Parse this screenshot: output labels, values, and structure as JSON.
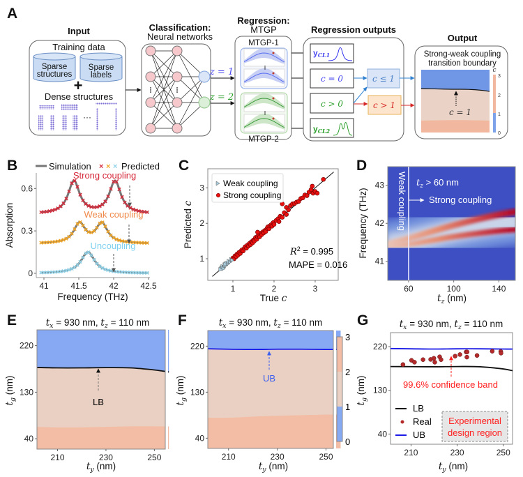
{
  "panel_labels": {
    "a": "A",
    "b": "B",
    "c": "C",
    "d": "D",
    "e": "E",
    "f": "F",
    "g": "G"
  },
  "diagram": {
    "input": {
      "title": "Input",
      "training": "Training data",
      "cyl1": [
        "Sparse",
        "structures"
      ],
      "cyl2": [
        "Sparse",
        "labels"
      ],
      "plus": "+",
      "dense": "Dense structures",
      "ellipsis": "···"
    },
    "classification": {
      "title1": "Classification:",
      "title2": "Neural networks",
      "z1": "z = 1",
      "z2": "z = 2"
    },
    "regression": {
      "title1": "Regression:",
      "title2": "MTGP",
      "mtgp1": "MTGP-1",
      "mtgp2": "MTGP-2"
    },
    "outputs": {
      "title": "Regression outputs",
      "ycl1": "y",
      "ycl1_sub": "CL1",
      "c0": "c = 0",
      "cgt0": "c > 0",
      "ycl2": "y",
      "ycl2_sub": "CL2",
      "cle1": "c ≤ 1",
      "cgt1": "c > 1"
    },
    "final": {
      "title": "Output",
      "sub1": "Strong-weak coupling",
      "sub2": "transition boundary",
      "cbar_label": "c",
      "cbar_ticks": [
        "3",
        "2",
        "1",
        "0"
      ],
      "annot": "c = 1"
    },
    "colors": {
      "blue": "#2f80d0",
      "red": "#d62828",
      "green": "#2ca02c",
      "purple": "#4a4af0"
    }
  },
  "chart_data": [
    {
      "id": "B",
      "type": "line",
      "legend": {
        "simulation": "Simulation",
        "predicted": "Predicted",
        "marks": [
          "×",
          "×",
          "×"
        ]
      },
      "xlabel": "Frequency (THz)",
      "ylabel": "Absorption",
      "xlim": [
        40.89,
        42.52
      ],
      "ylim": [
        -0.03,
        0.71
      ],
      "xticks": [
        "41",
        "41.5",
        "42",
        "42.5"
      ],
      "xtick_values": [
        41,
        41.5,
        42,
        42.5
      ],
      "yticks": [
        "0",
        "0.3",
        "0.6"
      ],
      "ytick_values": [
        0,
        0.3,
        0.6
      ],
      "predicted_step": 0.04,
      "series": [
        {
          "name": "Strong coupling",
          "color": "#d62839",
          "baseline": 0.42,
          "peaks": [
            [
              41.43,
              0.23
            ],
            [
              42.02,
              0.23
            ]
          ],
          "width": 0.1,
          "arrow_x": 42.23
        },
        {
          "name": "Weak coupling",
          "color": "#f5a623",
          "label_color": "#f08a4b",
          "baseline": 0.21,
          "peaks": [
            [
              41.51,
              0.14
            ],
            [
              41.83,
              0.14
            ]
          ],
          "width": 0.1,
          "arrow_x": 42.22
        },
        {
          "name": "Uncoupling",
          "color": "#8fd3ea",
          "label_color": "#7fd0ef",
          "baseline": 0.0,
          "peaks": [
            [
              41.63,
              0.15
            ]
          ],
          "width": 0.12,
          "arrow_x": 42.0
        }
      ]
    },
    {
      "id": "C",
      "type": "scatter",
      "xlabel": "True",
      "xlabel_var": "c",
      "ylabel": "Predicted",
      "ylabel_var": "c",
      "xlim": [
        0.39,
        3.56
      ],
      "ylim": [
        0.39,
        3.54
      ],
      "xticks": [
        "1",
        "2",
        "3"
      ],
      "xtick_values": [
        1,
        2,
        3
      ],
      "yticks": [
        "1",
        "2",
        "3"
      ],
      "ytick_values": [
        1,
        2,
        3
      ],
      "r2_label": "R",
      "r2_sup": "2",
      "r2_value": " = 0.995",
      "mape": "MAPE = 0.016",
      "series": [
        {
          "name": "Weak coupling",
          "color": "#a9cfe0",
          "points": [
            [
              0.72,
              0.74
            ],
            [
              0.75,
              0.78
            ],
            [
              0.78,
              0.76
            ],
            [
              0.8,
              0.83
            ],
            [
              0.83,
              0.81
            ],
            [
              0.85,
              0.88
            ],
            [
              0.88,
              0.86
            ],
            [
              0.9,
              0.93
            ],
            [
              0.93,
              0.91
            ],
            [
              0.96,
              0.98
            ],
            [
              0.98,
              0.96
            ],
            [
              0.77,
              0.72
            ],
            [
              0.7,
              0.7
            ],
            [
              0.82,
              0.85
            ]
          ]
        },
        {
          "name": "Strong coupling",
          "color": "#e8100f",
          "points": [
            [
              1.0,
              1.02
            ],
            [
              1.03,
              1.0
            ],
            [
              1.05,
              1.08
            ],
            [
              1.08,
              1.06
            ],
            [
              1.1,
              1.13
            ],
            [
              1.12,
              1.1
            ],
            [
              1.15,
              1.18
            ],
            [
              1.18,
              1.15
            ],
            [
              1.2,
              1.22
            ],
            [
              1.22,
              1.25
            ],
            [
              1.25,
              1.22
            ],
            [
              1.28,
              1.3
            ],
            [
              1.3,
              1.34
            ],
            [
              1.33,
              1.3
            ],
            [
              1.35,
              1.38
            ],
            [
              1.38,
              1.36
            ],
            [
              1.4,
              1.43
            ],
            [
              1.43,
              1.4
            ],
            [
              1.45,
              1.48
            ],
            [
              1.48,
              1.45
            ],
            [
              1.5,
              1.53
            ],
            [
              1.52,
              1.5
            ],
            [
              1.55,
              1.6
            ],
            [
              1.58,
              1.55
            ],
            [
              1.6,
              1.63
            ],
            [
              1.63,
              1.66
            ],
            [
              1.65,
              1.62
            ],
            [
              1.68,
              1.72
            ],
            [
              1.7,
              1.68
            ],
            [
              1.73,
              1.76
            ],
            [
              1.75,
              1.73
            ],
            [
              1.78,
              1.8
            ],
            [
              1.8,
              1.77
            ],
            [
              1.83,
              1.86
            ],
            [
              1.85,
              1.9
            ],
            [
              1.88,
              1.85
            ],
            [
              1.9,
              1.93
            ],
            [
              1.93,
              1.96
            ],
            [
              1.95,
              1.92
            ],
            [
              1.98,
              2.02
            ],
            [
              2.0,
              1.97
            ],
            [
              2.05,
              2.08
            ],
            [
              2.1,
              2.13
            ],
            [
              2.12,
              2.05
            ],
            [
              2.15,
              2.2
            ],
            [
              2.2,
              2.17
            ],
            [
              2.25,
              2.3
            ],
            [
              2.3,
              2.25
            ],
            [
              2.3,
              2.45
            ],
            [
              2.35,
              2.38
            ],
            [
              2.4,
              2.5
            ],
            [
              2.45,
              2.55
            ],
            [
              2.5,
              2.56
            ],
            [
              2.55,
              2.6
            ],
            [
              2.6,
              2.62
            ],
            [
              2.65,
              2.7
            ],
            [
              2.7,
              2.72
            ],
            [
              2.75,
              2.8
            ],
            [
              2.8,
              2.78
            ],
            [
              2.85,
              2.88
            ],
            [
              2.9,
              2.95
            ],
            [
              2.93,
              3.05
            ],
            [
              2.95,
              2.85
            ],
            [
              3.0,
              2.9
            ],
            [
              3.05,
              2.85
            ],
            [
              3.2,
              3.24
            ],
            [
              2.2,
              2.55
            ],
            [
              1.6,
              1.75
            ]
          ]
        }
      ],
      "fit_line": [
        [
          0.5,
          0.5
        ],
        [
          3.45,
          3.45
        ]
      ]
    },
    {
      "id": "D",
      "type": "heatmap",
      "xlabel": "t_z (nm)",
      "ylabel": "Frequency (THz)",
      "xlim": [
        41.5,
        154.6
      ],
      "ylim": [
        40.5,
        43.49
      ],
      "xticks": [
        "60",
        "100",
        "140"
      ],
      "xtick_values": [
        60,
        100,
        140
      ],
      "yticks": [
        "41",
        "42",
        "43"
      ],
      "ytick_values": [
        41,
        42,
        43
      ],
      "threshold_tz": 60,
      "weak_label": "Weak coupling",
      "cond_label": "t_z > 60 nm",
      "strong_label": "Strong coupling",
      "tz": [
        40,
        60,
        80,
        100,
        120,
        140,
        160
      ],
      "upper_branch": [
        41.45,
        41.6,
        41.78,
        41.95,
        42.1,
        42.23,
        42.33
      ],
      "lower_branch": [
        41.4,
        41.45,
        41.55,
        41.65,
        41.73,
        41.8,
        41.85
      ]
    },
    {
      "id": "E",
      "type": "area",
      "title": "t_x = 930 nm, t_z = 110 nm",
      "xlabel": "t_y (nm)",
      "ylabel": "t_g (nm)",
      "xlim": [
        201.5,
        254.5
      ],
      "ylim": [
        20,
        250.5
      ],
      "xticks": [
        "210",
        "230",
        "250"
      ],
      "xtick_values": [
        210,
        230,
        250
      ],
      "yticks": [
        "40",
        "130",
        "220"
      ],
      "ytick_values": [
        40,
        130,
        220
      ],
      "ty": [
        200,
        210,
        220,
        230,
        240,
        250,
        256
      ],
      "boundary_c1_LB": [
        178,
        177,
        177,
        177.5,
        177,
        173,
        169
      ],
      "boundary_c2": [
        63,
        62,
        62,
        63,
        64,
        64,
        64
      ],
      "annotation": "LB"
    },
    {
      "id": "F",
      "type": "area",
      "title": "t_x = 930 nm, t_z = 110 nm",
      "xlabel": "t_y (nm)",
      "ylabel": "t_g (nm)",
      "xlim": [
        201.5,
        253
      ],
      "ylim": [
        20,
        250.5
      ],
      "xticks": [
        "210",
        "230",
        "250"
      ],
      "xtick_values": [
        210,
        230,
        250
      ],
      "yticks": [
        "40",
        "130",
        "220"
      ],
      "ytick_values": [
        40,
        130,
        220
      ],
      "ty": [
        200,
        210,
        220,
        230,
        240,
        250,
        256
      ],
      "boundary_c1_UB": [
        215,
        214,
        213.5,
        214,
        214,
        213.5,
        213.5
      ],
      "boundary_c2": [
        80,
        80,
        82,
        84,
        85,
        86,
        86
      ],
      "annotation": "UB",
      "colorbar": {
        "ticks": [
          "3",
          "2",
          "1",
          "0"
        ],
        "range": [
          0,
          3
        ],
        "colors": [
          "#86a9f3",
          "#ead0c2",
          "#f3bca4"
        ]
      }
    },
    {
      "id": "G",
      "type": "line+scatter",
      "title": "t_x = 930 nm, t_z = 110 nm",
      "xlabel": "t_y (nm)",
      "ylabel": "t_g (nm)",
      "xlim": [
        201.1,
        254
      ],
      "ylim": [
        19,
        248.8
      ],
      "xticks": [
        "210",
        "230",
        "250"
      ],
      "xtick_values": [
        210,
        230,
        250
      ],
      "yticks": [
        "40",
        "130",
        "220"
      ],
      "ytick_values": [
        40,
        130,
        220
      ],
      "ty": [
        200,
        210,
        220,
        230,
        240,
        250,
        256
      ],
      "LB": [
        179,
        178.8,
        178.5,
        179,
        178.5,
        174,
        170.5
      ],
      "UB": [
        216,
        215.5,
        215,
        215.5,
        215.5,
        215,
        215
      ],
      "real": [
        [
          206.5,
          183.1
        ],
        [
          210.2,
          191.8
        ],
        [
          211.5,
          187.9
        ],
        [
          215.2,
          193.2
        ],
        [
          218.5,
          193.6
        ],
        [
          219.9,
          196.1
        ],
        [
          220.3,
          187.9
        ],
        [
          222.4,
          199
        ],
        [
          223,
          193.2
        ],
        [
          229.1,
          200.4
        ],
        [
          231.2,
          203.7
        ],
        [
          233.9,
          209
        ],
        [
          234.3,
          209
        ],
        [
          234.2,
          198.4
        ],
        [
          238.6,
          201.8
        ],
        [
          245.2,
          210.5
        ],
        [
          248.9,
          209.9
        ],
        [
          249,
          206.6
        ]
      ],
      "legend": {
        "lb": "LB",
        "real": "Real",
        "ub": "UB"
      },
      "band_label": "99.6% confidence band",
      "region_label": [
        "Experimental",
        "design region"
      ]
    }
  ]
}
